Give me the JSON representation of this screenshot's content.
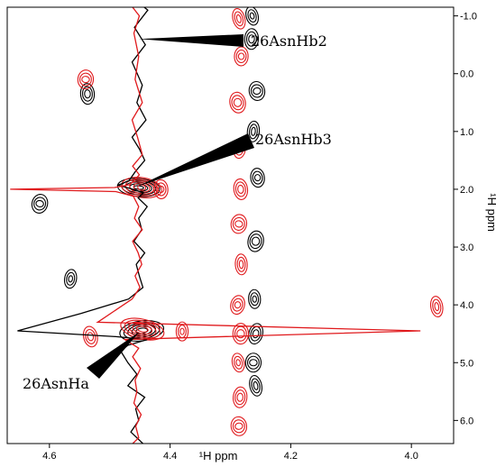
{
  "chart_data": {
    "type": "nmr-2d-contour",
    "title": "",
    "xlabel": "¹H ppm",
    "ylabel": "¹H ppm",
    "x_reversed": true,
    "y_reversed": true,
    "xlim": [
      4.67,
      3.93
    ],
    "ylim": [
      -1.15,
      6.4
    ],
    "x_ticks": [
      4.6,
      4.4,
      4.2,
      4.0
    ],
    "x_tick_labels": [
      "4.6",
      "4.4",
      "4.2",
      "4.0"
    ],
    "y_ticks": [
      -1.0,
      0.0,
      1.0,
      2.0,
      3.0,
      4.0,
      5.0,
      6.0
    ],
    "y_tick_labels": [
      "-1.0",
      "0.0",
      "1.0",
      "2.0",
      "3.0",
      "4.0",
      "5.0",
      "6.0"
    ],
    "grid": false,
    "legend": "none",
    "series": [
      {
        "color": "#000000",
        "kind": "slice-trace",
        "x_trace": [
          4.449,
          4.437,
          4.459,
          4.441,
          4.463,
          4.446,
          4.455,
          4.44,
          4.463,
          4.451,
          4.442,
          4.458,
          4.468,
          4.486,
          4.462,
          4.444,
          4.453,
          4.438,
          4.452,
          4.447,
          4.46,
          4.442,
          4.456,
          4.451,
          4.445,
          4.469,
          4.548,
          4.653,
          4.49,
          4.438,
          4.47,
          4.482,
          4.47,
          4.455,
          4.47,
          4.442,
          4.457,
          4.452,
          4.465,
          4.445,
          4.457,
          4.458,
          4.441,
          4.446,
          4.12,
          4.443,
          4.446,
          4.447,
          4.454,
          4.439,
          4.458,
          4.447,
          4.443,
          4.457,
          4.439,
          4.459,
          4.445,
          4.442,
          4.45,
          4.446
        ],
        "y_trace": [
          -1.2,
          -1.1,
          -0.8,
          -0.5,
          -0.2,
          0.2,
          0.5,
          0.8,
          1.1,
          1.3,
          1.5,
          1.7,
          1.85,
          1.93,
          2.0,
          2.06,
          2.15,
          2.3,
          2.5,
          2.7,
          2.9,
          3.1,
          3.3,
          3.5,
          3.7,
          3.9,
          4.15,
          4.45,
          4.55,
          4.6,
          4.7,
          4.8,
          5.0,
          5.2,
          5.4,
          5.6,
          5.8,
          6.0,
          6.2,
          6.4,
          6.45,
          6.45,
          6.45,
          6.45,
          6.45,
          6.45,
          6.45,
          6.45,
          6.45,
          6.45,
          6.45,
          6.45,
          6.45,
          6.45,
          6.45,
          6.45,
          6.45,
          6.45,
          6.45,
          6.45
        ]
      },
      {
        "color": "#e0191c",
        "kind": "slice-trace",
        "x_trace": [
          4.466,
          4.451,
          4.46,
          4.452,
          4.458,
          4.446,
          4.463,
          4.454,
          4.446,
          4.462,
          4.451,
          4.46,
          4.467,
          4.492,
          4.665,
          4.49,
          4.461,
          4.452,
          4.459,
          4.446,
          4.462,
          4.453,
          4.447,
          4.458,
          4.45,
          4.463,
          4.52,
          3.985,
          4.475,
          4.452,
          4.462,
          4.449,
          4.458,
          4.455,
          4.46,
          4.448,
          4.457,
          4.452,
          4.462,
          4.456
        ],
        "y_trace": [
          -1.2,
          -1.0,
          -0.7,
          -0.3,
          0.1,
          0.5,
          0.8,
          1.1,
          1.4,
          1.6,
          1.75,
          1.85,
          1.92,
          1.97,
          2.0,
          2.04,
          2.12,
          2.3,
          2.5,
          2.7,
          2.9,
          3.1,
          3.3,
          3.5,
          3.7,
          3.9,
          4.3,
          4.45,
          4.6,
          4.75,
          4.9,
          5.1,
          5.3,
          5.5,
          5.7,
          5.9,
          6.1,
          6.3,
          6.4,
          6.45
        ]
      },
      {
        "color": "#000000",
        "kind": "contours",
        "peaks": [
          [
            4.264,
            -1.0
          ],
          [
            4.265,
            -0.6
          ],
          [
            4.256,
            0.3
          ],
          [
            4.262,
            1.0
          ],
          [
            4.255,
            1.8
          ],
          [
            4.258,
            2.9
          ],
          [
            4.26,
            3.9
          ],
          [
            4.258,
            4.5
          ],
          [
            4.262,
            5.0
          ],
          [
            4.258,
            5.4
          ],
          [
            4.452,
            1.97
          ],
          [
            4.447,
            4.45
          ],
          [
            4.565,
            3.55
          ],
          [
            4.537,
            0.35
          ],
          [
            4.616,
            2.25
          ]
        ]
      },
      {
        "color": "#e0191c",
        "kind": "contours",
        "peaks": [
          [
            4.286,
            -0.95
          ],
          [
            4.282,
            -0.3
          ],
          [
            4.288,
            0.5
          ],
          [
            4.285,
            1.3
          ],
          [
            4.283,
            2.0
          ],
          [
            4.286,
            2.6
          ],
          [
            4.282,
            3.3
          ],
          [
            4.288,
            4.0
          ],
          [
            4.283,
            4.5
          ],
          [
            4.287,
            5.0
          ],
          [
            4.284,
            5.6
          ],
          [
            4.286,
            6.1
          ],
          [
            4.447,
            1.97
          ],
          [
            4.415,
            2.0
          ],
          [
            4.446,
            4.42
          ],
          [
            4.38,
            4.46
          ],
          [
            4.532,
            4.55
          ],
          [
            4.54,
            0.1
          ],
          [
            3.958,
            4.03
          ]
        ]
      }
    ],
    "annotations": [
      {
        "text": "26AsnHb2",
        "point": [
          4.452,
          -0.6
        ]
      },
      {
        "text": "26AsnHb3",
        "point": [
          4.454,
          1.95
        ]
      },
      {
        "text": "26AsnHa",
        "point": [
          4.451,
          4.47
        ]
      }
    ]
  }
}
